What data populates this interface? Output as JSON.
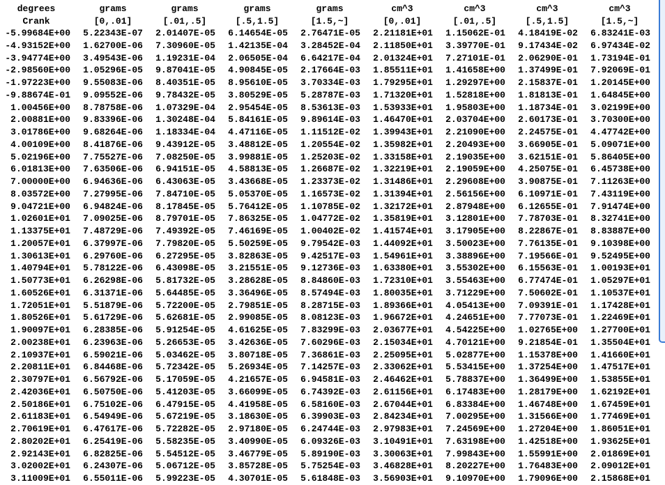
{
  "header_units": [
    "degrees",
    "grams",
    "grams",
    "grams",
    "grams",
    "cm^3",
    "cm^3",
    "cm^3",
    "cm^3"
  ],
  "header_labels": [
    "Crank",
    "[0,.01]",
    "[.01,.5]",
    "[.5,1.5]",
    "[1.5,~]",
    "[0,.01]",
    "[.01,.5]",
    "[.5,1.5]",
    "[1.5,~]"
  ],
  "rows": [
    [
      "-5.99684E+00",
      "5.22343E-07",
      "2.01407E-05",
      "6.14654E-05",
      "2.76471E-05",
      "2.21181E+01",
      "1.15062E-01",
      "4.18419E-02",
      "6.83241E-03"
    ],
    [
      "-4.93152E+00",
      "1.62700E-06",
      "7.30960E-05",
      "1.42135E-04",
      "3.28452E-04",
      "2.11850E+01",
      "3.39770E-01",
      "9.17434E-02",
      "6.97434E-02"
    ],
    [
      "-3.94774E+00",
      "3.49543E-06",
      "1.19231E-04",
      "2.06505E-04",
      "6.64217E-04",
      "2.01324E+01",
      "7.27101E-01",
      "2.06290E-01",
      "1.73194E-01"
    ],
    [
      "-2.98560E+00",
      "1.05296E-05",
      "9.87041E-05",
      "4.90845E-05",
      "2.17664E-03",
      "1.85511E+01",
      "1.41658E+00",
      "1.37499E-01",
      "7.92069E-01"
    ],
    [
      "-1.97223E+00",
      "9.55083E-06",
      "8.40351E-05",
      "8.95610E-05",
      "3.70334E-03",
      "1.79295E+01",
      "1.29297E+00",
      "2.15837E-01",
      "1.20145E+00"
    ],
    [
      "-9.88674E-01",
      "9.09552E-06",
      "9.78432E-05",
      "3.80529E-05",
      "5.28787E-03",
      "1.71320E+01",
      "1.52818E+00",
      "1.81813E-01",
      "1.64845E+00"
    ],
    [
      "1.00456E+00",
      "8.78758E-06",
      "1.07329E-04",
      "2.95454E-05",
      "8.53613E-03",
      "1.53933E+01",
      "1.95803E+00",
      "1.18734E-01",
      "3.02199E+00"
    ],
    [
      "2.00881E+00",
      "9.83396E-06",
      "1.30248E-04",
      "5.84161E-05",
      "9.89614E-03",
      "1.46470E+01",
      "2.03704E+00",
      "2.60173E-01",
      "3.70300E+00"
    ],
    [
      "3.01786E+00",
      "9.68264E-06",
      "1.18334E-04",
      "4.47116E-05",
      "1.11512E-02",
      "1.39943E+01",
      "2.21090E+00",
      "2.24575E-01",
      "4.47742E+00"
    ],
    [
      "4.00109E+00",
      "8.41876E-06",
      "9.43912E-05",
      "3.48812E-05",
      "1.20554E-02",
      "1.35982E+01",
      "2.20493E+00",
      "3.66905E-01",
      "5.09071E+00"
    ],
    [
      "5.02196E+00",
      "7.75527E-06",
      "7.08250E-05",
      "3.99881E-05",
      "1.25203E-02",
      "1.33158E+01",
      "2.19035E+00",
      "3.62151E-01",
      "5.86405E+00"
    ],
    [
      "6.01813E+00",
      "7.63506E-06",
      "6.94151E-05",
      "4.58813E-05",
      "1.26687E-02",
      "1.32219E+01",
      "2.19059E+00",
      "4.25075E-01",
      "6.45738E+00"
    ],
    [
      "7.00000E+00",
      "6.94636E-06",
      "6.43063E-05",
      "3.43668E-05",
      "1.23373E-02",
      "1.31486E+01",
      "2.29608E+00",
      "3.90875E-01",
      "7.11263E+00"
    ],
    [
      "8.03572E+00",
      "7.27995E-06",
      "7.84710E-05",
      "5.05370E-05",
      "1.16573E-02",
      "1.31394E+01",
      "2.56156E+00",
      "6.10971E-01",
      "7.43119E+00"
    ],
    [
      "9.04721E+00",
      "6.94824E-06",
      "8.17845E-05",
      "5.76412E-05",
      "1.10785E-02",
      "1.32172E+01",
      "2.87948E+00",
      "6.12655E-01",
      "7.91474E+00"
    ],
    [
      "1.02601E+01",
      "7.09025E-06",
      "8.79701E-05",
      "7.86325E-05",
      "1.04772E-02",
      "1.35819E+01",
      "3.12801E+00",
      "7.78703E-01",
      "8.32741E+00"
    ],
    [
      "1.13375E+01",
      "7.48729E-06",
      "7.49392E-05",
      "7.46169E-05",
      "1.00402E-02",
      "1.41574E+01",
      "3.17905E+00",
      "8.22867E-01",
      "8.83887E+00"
    ],
    [
      "1.20057E+01",
      "6.37997E-06",
      "7.79820E-05",
      "5.50259E-05",
      "9.79542E-03",
      "1.44092E+01",
      "3.50023E+00",
      "7.76135E-01",
      "9.10398E+00"
    ],
    [
      "1.30613E+01",
      "6.29760E-06",
      "6.27295E-05",
      "3.82863E-05",
      "9.42517E-03",
      "1.54961E+01",
      "3.38896E+00",
      "7.19566E-01",
      "9.52495E+00"
    ],
    [
      "1.40794E+01",
      "5.78122E-06",
      "6.43098E-05",
      "3.21551E-05",
      "9.12736E-03",
      "1.63380E+01",
      "3.55302E+00",
      "6.15563E-01",
      "1.00193E+01"
    ],
    [
      "1.50773E+01",
      "6.26298E-06",
      "5.81732E-05",
      "3.28628E-05",
      "8.84860E-03",
      "1.72310E+01",
      "3.55463E+00",
      "6.77474E-01",
      "1.05297E+01"
    ],
    [
      "1.60526E+01",
      "6.31371E-06",
      "5.64485E-05",
      "3.36496E-05",
      "8.57494E-03",
      "1.80035E+01",
      "3.71229E+00",
      "7.50602E-01",
      "1.10537E+01"
    ],
    [
      "1.72051E+01",
      "5.51879E-06",
      "5.72200E-05",
      "2.79851E-05",
      "8.28715E-03",
      "1.89366E+01",
      "4.05413E+00",
      "7.09391E-01",
      "1.17428E+01"
    ],
    [
      "1.80526E+01",
      "5.61729E-06",
      "5.62681E-05",
      "2.99085E-05",
      "8.08123E-03",
      "1.96672E+01",
      "4.24651E+00",
      "7.77073E-01",
      "1.22469E+01"
    ],
    [
      "1.90097E+01",
      "6.28385E-06",
      "5.91254E-05",
      "4.61625E-05",
      "7.83299E-03",
      "2.03677E+01",
      "4.54225E+00",
      "1.02765E+00",
      "1.27700E+01"
    ],
    [
      "2.00238E+01",
      "6.23963E-06",
      "5.26653E-05",
      "3.42636E-05",
      "7.60296E-03",
      "2.15034E+01",
      "4.70121E+00",
      "9.21854E-01",
      "1.35504E+01"
    ],
    [
      "2.10937E+01",
      "6.59021E-06",
      "5.03462E-05",
      "3.80718E-05",
      "7.36861E-03",
      "2.25095E+01",
      "5.02877E+00",
      "1.15378E+00",
      "1.41660E+01"
    ],
    [
      "2.20811E+01",
      "6.84468E-06",
      "5.72342E-05",
      "5.26934E-05",
      "7.14257E-03",
      "2.33062E+01",
      "5.53415E+00",
      "1.37254E+00",
      "1.47517E+01"
    ],
    [
      "2.30797E+01",
      "6.56792E-06",
      "5.17059E-05",
      "4.21657E-05",
      "6.94581E-03",
      "2.46462E+01",
      "5.78837E+00",
      "1.36499E+00",
      "1.53855E+01"
    ],
    [
      "2.42036E+01",
      "6.50750E-06",
      "5.41203E-05",
      "3.66099E-05",
      "6.74392E-03",
      "2.61156E+01",
      "6.17483E+00",
      "1.28179E+00",
      "1.62192E+01"
    ],
    [
      "2.50186E+01",
      "6.75102E-06",
      "6.47915E-05",
      "4.41958E-05",
      "6.58160E-03",
      "2.67044E+01",
      "6.83384E+00",
      "1.46748E+00",
      "1.67459E+01"
    ],
    [
      "2.61183E+01",
      "6.54949E-06",
      "5.67219E-05",
      "3.18630E-05",
      "6.39903E-03",
      "2.84234E+01",
      "7.00295E+00",
      "1.31566E+00",
      "1.77469E+01"
    ],
    [
      "2.70619E+01",
      "6.47617E-06",
      "5.72282E-05",
      "2.97180E-05",
      "6.24744E-03",
      "2.97983E+01",
      "7.24569E+00",
      "1.27204E+00",
      "1.86051E+01"
    ],
    [
      "2.80202E+01",
      "6.25419E-06",
      "5.58235E-05",
      "3.40990E-05",
      "6.09326E-03",
      "3.10491E+01",
      "7.63198E+00",
      "1.42518E+00",
      "1.93625E+01"
    ],
    [
      "2.92143E+01",
      "6.82825E-06",
      "5.54512E-05",
      "3.46779E-05",
      "5.89190E-03",
      "3.30063E+01",
      "7.99843E+00",
      "1.55991E+00",
      "2.01869E+01"
    ],
    [
      "3.02002E+01",
      "6.24307E-06",
      "5.06712E-05",
      "3.85728E-05",
      "5.75254E-03",
      "3.46828E+01",
      "8.20227E+00",
      "1.76483E+00",
      "2.09012E+01"
    ],
    [
      "3.11009E+01",
      "6.55011E-06",
      "5.99223E-05",
      "4.30701E-05",
      "5.61848E-03",
      "3.56903E+01",
      "9.10970E+00",
      "1.79096E+00",
      "2.15868E+01"
    ]
  ],
  "colors": {
    "scrollbar_border": "#3a7bd5",
    "scrollbar_thumb": "#e8f0fb"
  }
}
